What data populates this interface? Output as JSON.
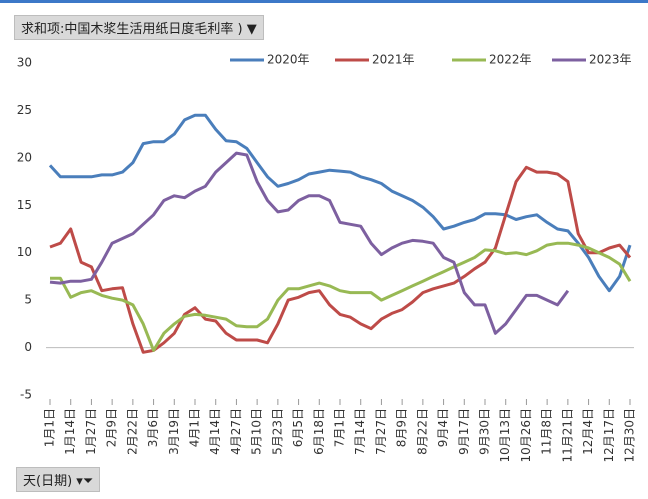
{
  "value_field": "求和项:中国木浆生活用纸日度毛利率",
  "axis_field": "天(日期)",
  "chart_data": {
    "type": "line",
    "categories": [
      "1月1日",
      null,
      "1月14日",
      null,
      "1月27日",
      null,
      "2月9日",
      null,
      "2月22日",
      null,
      "3月6日",
      null,
      "3月19日",
      null,
      "4月1日",
      null,
      "4月14日",
      null,
      "4月27日",
      null,
      "5月10日",
      null,
      "5月23日",
      null,
      "6月5日",
      null,
      "6月18日",
      null,
      "7月1日",
      null,
      "7月14日",
      null,
      "7月27日",
      null,
      "8月9日",
      null,
      "8月22日",
      null,
      "9月4日",
      null,
      "9月17日",
      null,
      "9月30日",
      null,
      "10月13日",
      null,
      "10月26日",
      null,
      "11月8日",
      null,
      "11月21日",
      null,
      "12月4日",
      null,
      "12月17日",
      null,
      "12月30日"
    ],
    "ylim": [
      -5,
      30
    ],
    "yticks": [
      -5,
      0,
      5,
      10,
      15,
      20,
      25,
      30
    ],
    "grid": false,
    "legend": "top-right",
    "series": [
      {
        "name": "2020年",
        "color": "#4a7ebb",
        "values": [
          19.2,
          18,
          18,
          18,
          18,
          18.2,
          18.2,
          18.5,
          19.5,
          21.5,
          21.7,
          21.7,
          22.5,
          24,
          24.5,
          24.5,
          23,
          21.8,
          21.7,
          21,
          19.5,
          18,
          17,
          17.3,
          17.7,
          18.3,
          18.5,
          18.7,
          18.6,
          18.5,
          18,
          17.7,
          17.3,
          16.5,
          16,
          15.5,
          14.8,
          13.8,
          12.5,
          12.8,
          13.2,
          13.5,
          14.1,
          14.1,
          14,
          13.5,
          13.8,
          14,
          13.2,
          12.5,
          12.3,
          11,
          9.5,
          7.5,
          6,
          7.5,
          10.8
        ]
      },
      {
        "name": "2021年",
        "color": "#be4b48",
        "values": [
          10.6,
          11,
          12.5,
          9,
          8.5,
          6,
          6.2,
          6.3,
          2.5,
          -0.5,
          -0.3,
          0.5,
          1.5,
          3.5,
          4.2,
          3,
          2.8,
          1.5,
          0.8,
          0.8,
          0.8,
          0.5,
          2.5,
          5,
          5.3,
          5.8,
          6,
          4.5,
          3.5,
          3.2,
          2.5,
          2,
          3,
          3.6,
          4,
          4.8,
          5.8,
          6.2,
          6.5,
          6.8,
          7.5,
          8.3,
          9,
          10.5,
          14,
          17.5,
          19,
          18.5,
          18.5,
          18.3,
          17.5,
          12,
          10,
          10,
          10.5,
          10.8,
          9.5
        ]
      },
      {
        "name": "2022年",
        "color": "#98b954",
        "values": [
          7.3,
          7.3,
          5.3,
          5.8,
          6,
          5.5,
          5.2,
          5,
          4.5,
          2.5,
          -0.3,
          1.5,
          2.5,
          3.3,
          3.5,
          3.4,
          3.2,
          3,
          2.3,
          2.2,
          2.2,
          3,
          5,
          6.2,
          6.2,
          6.5,
          6.8,
          6.5,
          6,
          5.8,
          5.8,
          5.8,
          5,
          5.5,
          6,
          6.5,
          7,
          7.5,
          8,
          8.5,
          9,
          9.5,
          10.3,
          10.2,
          9.9,
          10,
          9.8,
          10.2,
          10.8,
          11,
          11,
          10.8,
          10.5,
          10,
          9.5,
          8.8,
          7
        ]
      },
      {
        "name": "2023年",
        "color": "#7d60a0",
        "values": [
          6.9,
          6.8,
          7,
          7,
          7.2,
          9,
          11,
          11.5,
          12,
          13,
          14,
          15.5,
          16,
          15.8,
          16.5,
          17,
          18.5,
          19.5,
          20.5,
          20.3,
          17.5,
          15.5,
          14.3,
          14.5,
          15.5,
          16,
          16,
          15.5,
          13.2,
          13,
          12.8,
          11,
          9.8,
          10.5,
          11,
          11.3,
          11.2,
          11,
          9.5,
          9,
          5.8,
          4.5,
          4.5,
          1.5,
          2.5,
          4,
          5.5,
          5.5,
          5,
          4.5,
          6,
          null,
          null,
          null,
          null,
          null,
          null
        ]
      }
    ]
  }
}
